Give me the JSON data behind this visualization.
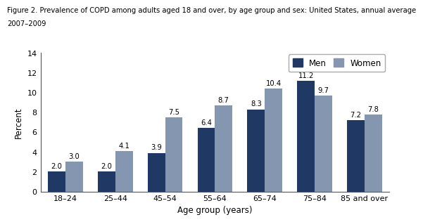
{
  "title_line1": "Figure 2. Prevalence of COPD among adults aged 18 and over, by age group and sex: United States, annual average",
  "title_line2": "2007–2009",
  "categories": [
    "18–24",
    "25–44",
    "45–54",
    "55–64",
    "65–74",
    "75–84",
    "85 and over"
  ],
  "men_values": [
    2.0,
    2.0,
    3.9,
    6.4,
    8.3,
    11.2,
    7.2
  ],
  "women_values": [
    3.0,
    4.1,
    7.5,
    8.7,
    10.4,
    9.7,
    7.8
  ],
  "men_color": "#1F3864",
  "women_color": "#8496B0",
  "xlabel": "Age group (years)",
  "ylabel": "Percent",
  "ylim": [
    0,
    14
  ],
  "yticks": [
    0,
    2,
    4,
    6,
    8,
    10,
    12,
    14
  ],
  "legend_labels": [
    "Men",
    "Women"
  ],
  "bar_width": 0.35,
  "title_fontsize": 7.2,
  "axis_label_fontsize": 8.5,
  "tick_fontsize": 8.0,
  "value_fontsize": 7.2,
  "legend_fontsize": 8.5,
  "background_color": "#ffffff",
  "plot_bg_color": "#ffffff"
}
